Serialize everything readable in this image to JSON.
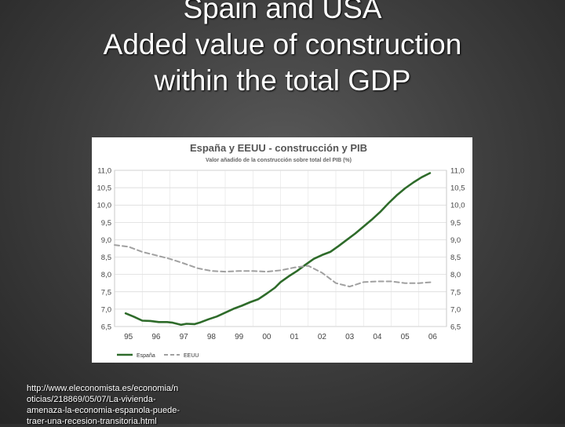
{
  "slide": {
    "title_lines": [
      "Spain and USA",
      "Added value of construction",
      "within the total GDP"
    ],
    "source_lines": [
      "http://www.eleconomista.es/economia/n",
      "oticias/218869/05/07/La-vivienda-",
      "amenaza-la-economia-espanola-puede-",
      "traer-una-recesion-transitoria.html"
    ]
  },
  "chart_data": {
    "type": "line",
    "title": "España y EEUU - construcción y PIB",
    "subtitle": "Valor añadido de la construcción sobre total del PIB (%)",
    "xlabel": "",
    "ylabel": "",
    "x_ticks": [
      "95",
      "96",
      "97",
      "98",
      "99",
      "00",
      "01",
      "02",
      "03",
      "04",
      "05",
      "06"
    ],
    "y_ticks": [
      "11,0",
      "10,5",
      "10,0",
      "9,5",
      "9,0",
      "8,5",
      "8,0",
      "7,5",
      "7,0",
      "6,5"
    ],
    "ylim": [
      6.5,
      11.0
    ],
    "xlim": [
      1995,
      2007
    ],
    "legend_position": "bottom-left",
    "colors": {
      "spain": "#2e6b2a",
      "usa": "#a0a0a0"
    },
    "series": [
      {
        "name": "España",
        "style": "solid",
        "x": [
          1995.4,
          1995.7,
          1996.0,
          1996.3,
          1996.6,
          1996.9,
          1997.1,
          1997.4,
          1997.6,
          1997.9,
          1998.1,
          1998.4,
          1998.7,
          1999.0,
          1999.3,
          1999.6,
          1999.9,
          2000.2,
          2000.5,
          2000.8,
          2001.0,
          2001.3,
          2001.6,
          2001.9,
          2002.2,
          2002.5,
          2002.8,
          2003.1,
          2003.4,
          2003.7,
          2004.0,
          2004.3,
          2004.6,
          2004.9,
          2005.2,
          2005.5,
          2005.8,
          2006.1,
          2006.4
        ],
        "values": [
          6.88,
          6.78,
          6.67,
          6.66,
          6.63,
          6.63,
          6.61,
          6.55,
          6.58,
          6.57,
          6.62,
          6.71,
          6.79,
          6.9,
          7.01,
          7.1,
          7.2,
          7.29,
          7.45,
          7.62,
          7.78,
          7.95,
          8.1,
          8.28,
          8.45,
          8.56,
          8.65,
          8.82,
          9.0,
          9.18,
          9.38,
          9.58,
          9.8,
          10.05,
          10.28,
          10.48,
          10.65,
          10.8,
          10.92
        ]
      },
      {
        "name": "EEUU",
        "style": "dashed",
        "x": [
          1995.0,
          1995.5,
          1996.0,
          1996.5,
          1997.0,
          1997.5,
          1998.0,
          1998.5,
          1999.0,
          1999.5,
          2000.0,
          2000.5,
          2001.0,
          2001.5,
          2002.0,
          2002.5,
          2003.0,
          2003.5,
          2004.0,
          2004.5,
          2005.0,
          2005.5,
          2006.0,
          2006.5
        ],
        "values": [
          8.85,
          8.8,
          8.65,
          8.55,
          8.45,
          8.32,
          8.18,
          8.1,
          8.08,
          8.1,
          8.1,
          8.08,
          8.12,
          8.2,
          8.25,
          8.05,
          7.75,
          7.65,
          7.78,
          7.8,
          7.8,
          7.75,
          7.75,
          7.78
        ]
      }
    ]
  }
}
